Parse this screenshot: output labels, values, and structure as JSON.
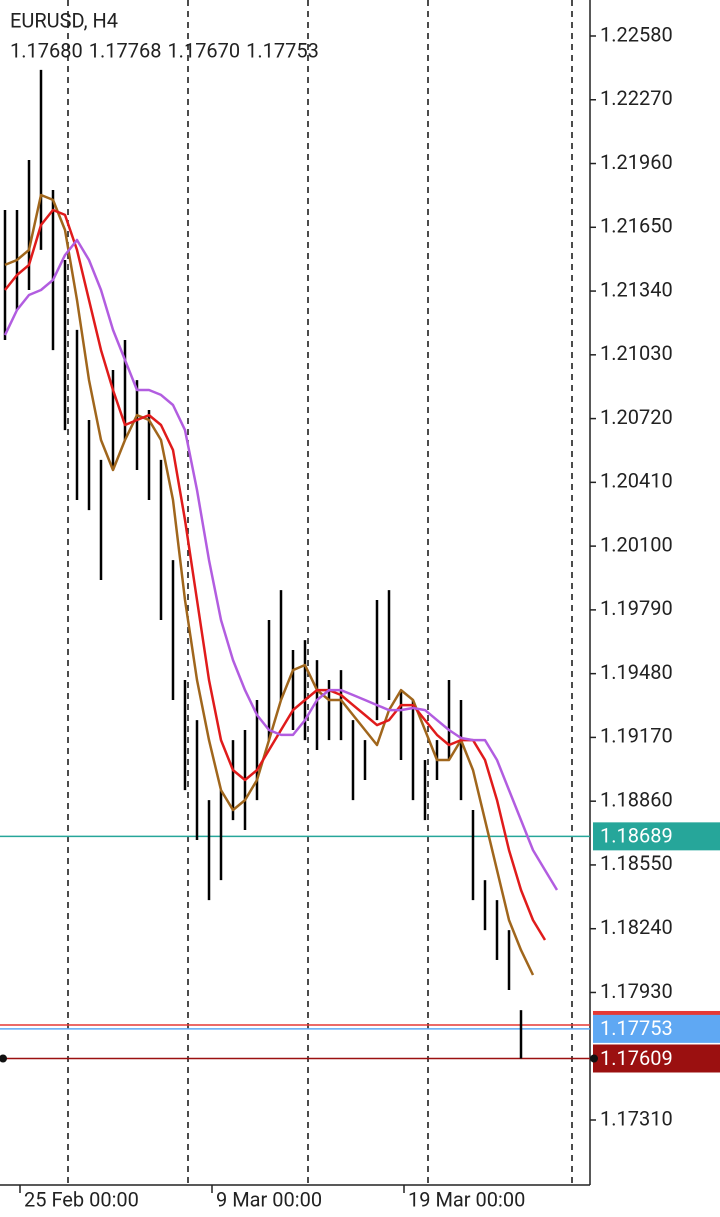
{
  "chart_data": {
    "type": "ohlc",
    "title": "EURUSD, H4",
    "quote": [
      "1.17680",
      "1.17768",
      "1.17670",
      "1.17753"
    ],
    "xlim": [
      -0.4167,
      48.75
    ],
    "ylim": [
      1.16994,
      1.22755
    ],
    "yticks": [
      {
        "value": 1.2258,
        "label": "1.22580"
      },
      {
        "value": 1.2227,
        "label": "1.22270"
      },
      {
        "value": 1.2196,
        "label": "1.21960"
      },
      {
        "value": 1.2165,
        "label": "1.21650"
      },
      {
        "value": 1.2134,
        "label": "1.21340"
      },
      {
        "value": 1.2103,
        "label": "1.21030"
      },
      {
        "value": 1.2072,
        "label": "1.20720"
      },
      {
        "value": 1.2041,
        "label": "1.20410"
      },
      {
        "value": 1.201,
        "label": "1.20100"
      },
      {
        "value": 1.1979,
        "label": "1.19790"
      },
      {
        "value": 1.1948,
        "label": "1.19480"
      },
      {
        "value": 1.1917,
        "label": "1.19170"
      },
      {
        "value": 1.1886,
        "label": "1.18860"
      },
      {
        "value": 1.1855,
        "label": "1.18550"
      },
      {
        "value": 1.1824,
        "label": "1.18240"
      },
      {
        "value": 1.1793,
        "label": "1.17930"
      },
      {
        "value": 1.1731,
        "label": "1.17310"
      }
    ],
    "xticks": [
      {
        "value": 1.25,
        "label": "25 Feb 00:00"
      },
      {
        "value": 17.25,
        "label": "9 Mar 00:00"
      },
      {
        "value": 33.25,
        "label": "19 Mar 00:00"
      }
    ],
    "separators": [
      5.25,
      15.25,
      25.25,
      35.25,
      47.25
    ],
    "bar_color": "#000000",
    "high": [
      1.21734,
      1.21734,
      1.21977,
      1.22415,
      1.21831,
      1.21491,
      1.21151,
      1.20713,
      1.20519,
      1.20956,
      1.21102,
      1.20907,
      1.20762,
      1.20519,
      1.20032,
      1.19449,
      1.19254,
      1.18865,
      1.18914,
      1.19157,
      1.19206,
      1.19352,
      1.19741,
      1.19886,
      1.19595,
      1.19643,
      1.19546,
      1.19449,
      1.19497,
      1.19254,
      1.19157,
      1.19838,
      1.19886,
      1.194,
      1.19352,
      1.1906,
      1.19157,
      1.19449,
      1.19352,
      1.18817,
      1.18476,
      1.18379,
      1.18233,
      1.17844
    ],
    "low": [
      1.21102,
      1.21248,
      1.21345,
      1.2154,
      1.21053,
      1.20664,
      1.20324,
      1.20275,
      1.19935,
      1.2047,
      1.20616,
      1.2047,
      1.20324,
      1.19741,
      1.19352,
      1.18914,
      1.18671,
      1.18379,
      1.18476,
      1.18768,
      1.1872,
      1.18865,
      1.19157,
      1.19352,
      1.19206,
      1.19157,
      1.19109,
      1.19157,
      1.19157,
      1.18865,
      1.18963,
      1.19254,
      1.19352,
      1.1906,
      1.18865,
      1.18768,
      1.18963,
      1.1906,
      1.18865,
      1.18379,
      1.18233,
      1.18088,
      1.17942,
      1.17609
    ],
    "series": [
      {
        "name": "brown",
        "color": "#a0661c",
        "values": [
          1.21467,
          1.21491,
          1.2154,
          1.21807,
          1.21783,
          1.21637,
          1.21296,
          1.20907,
          1.20616,
          1.2047,
          1.20616,
          1.20737,
          1.20713,
          1.20616,
          1.20324,
          1.19838,
          1.19449,
          1.19157,
          1.18914,
          1.18817,
          1.18865,
          1.18963,
          1.19157,
          1.19352,
          1.19497,
          1.19522,
          1.194,
          1.19352,
          1.19352,
          1.19279,
          1.19206,
          1.19133,
          1.19303,
          1.194,
          1.19352,
          1.19206,
          1.1906,
          1.1906,
          1.19157,
          1.19011,
          1.18768,
          1.18525,
          1.18282,
          1.18136,
          1.18015,
          null,
          null
        ]
      },
      {
        "name": "red",
        "color": "#e01b1b",
        "values": [
          1.21345,
          1.21418,
          1.21467,
          1.21661,
          1.21734,
          1.2171,
          1.2154,
          1.21296,
          1.21053,
          1.20859,
          1.20689,
          1.20713,
          1.20737,
          1.20689,
          1.20567,
          1.20227,
          1.19838,
          1.19449,
          1.19157,
          1.19011,
          1.18963,
          1.19011,
          1.19109,
          1.19206,
          1.19303,
          1.19352,
          1.194,
          1.194,
          1.19376,
          1.19327,
          1.19279,
          1.1923,
          1.19254,
          1.19327,
          1.19327,
          1.19254,
          1.19182,
          1.19133,
          1.19157,
          1.19157,
          1.1906,
          1.18865,
          1.18622,
          1.18428,
          1.18282,
          1.18185,
          null
        ]
      },
      {
        "name": "violet",
        "color": "#b25de0",
        "values": [
          1.21126,
          1.21248,
          1.21321,
          1.21345,
          1.21394,
          1.21515,
          1.21588,
          1.21491,
          1.21345,
          1.21151,
          1.21005,
          1.20859,
          1.20859,
          1.20835,
          1.20786,
          1.20664,
          1.20373,
          1.20032,
          1.19741,
          1.19546,
          1.194,
          1.19279,
          1.19206,
          1.19182,
          1.19182,
          1.19254,
          1.19352,
          1.194,
          1.194,
          1.19376,
          1.19352,
          1.19327,
          1.19303,
          1.19303,
          1.19313,
          1.19303,
          1.19254,
          1.19206,
          1.19167,
          1.19157,
          1.19157,
          1.1906,
          1.18914,
          1.18768,
          1.18622,
          1.18525,
          1.18428
        ]
      }
    ],
    "levels": [
      {
        "value": 1.18689,
        "label": "1.18689",
        "color": "#26a69a"
      },
      {
        "value": 1.17772,
        "color": "#e53935"
      },
      {
        "value": 1.17753,
        "label": "1.17753",
        "color": "#5fa8f3"
      },
      {
        "value": 1.17609,
        "label": "1.17609",
        "color": "#9b1010"
      }
    ]
  }
}
